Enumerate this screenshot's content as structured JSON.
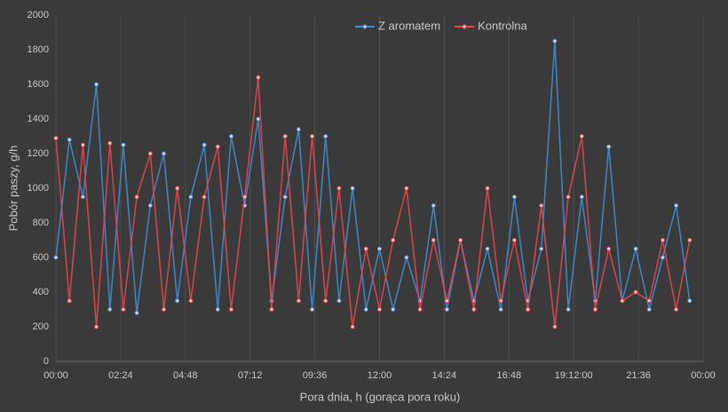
{
  "chart_data": {
    "type": "line",
    "xlabel": "Pora dnia, h (gorąca pora roku)",
    "ylabel": "Pobór paszy, g/h",
    "x": [
      0,
      0.5,
      1,
      1.5,
      2,
      2.5,
      3,
      3.5,
      4,
      4.5,
      5,
      5.5,
      6,
      6.5,
      7,
      7.5,
      8,
      8.5,
      9,
      9.5,
      10,
      10.5,
      11,
      11.5,
      12,
      12.5,
      13,
      13.5,
      14,
      14.5,
      15,
      15.5,
      16,
      16.5,
      17,
      17.5,
      18,
      18.5,
      19,
      19.5,
      20,
      20.5,
      21,
      21.5,
      22,
      22.5,
      23,
      23.5
    ],
    "series": [
      {
        "name": "Z aromatem",
        "color": "#3f8fd6",
        "values": [
          600,
          1280,
          950,
          1600,
          300,
          1250,
          280,
          900,
          1200,
          350,
          950,
          1250,
          300,
          1300,
          900,
          1400,
          350,
          950,
          1340,
          300,
          1300,
          350,
          1000,
          300,
          650,
          300,
          600,
          350,
          900,
          300,
          700,
          350,
          650,
          300,
          950,
          350,
          650,
          1850,
          300,
          950,
          350,
          1240,
          350,
          650,
          300,
          600,
          900,
          350
        ]
      },
      {
        "name": "Kontrolna",
        "color": "#e8474f",
        "values": [
          1290,
          350,
          1250,
          200,
          1260,
          300,
          950,
          1200,
          300,
          1000,
          350,
          950,
          1240,
          300,
          950,
          1640,
          300,
          1300,
          350,
          1300,
          350,
          1000,
          200,
          650,
          300,
          700,
          1000,
          300,
          700,
          350,
          700,
          300,
          1000,
          350,
          700,
          300,
          900,
          200,
          950,
          1300,
          300,
          650,
          350,
          400,
          350,
          700,
          300,
          700
        ]
      }
    ],
    "xlim": [
      0,
      24
    ],
    "xticks": [
      {
        "value": 0,
        "label": "00:00"
      },
      {
        "value": 2.4,
        "label": "02:24"
      },
      {
        "value": 4.8,
        "label": "04:48"
      },
      {
        "value": 7.2,
        "label": "07:12"
      },
      {
        "value": 9.6,
        "label": "09:36"
      },
      {
        "value": 12,
        "label": "12:00"
      },
      {
        "value": 14.4,
        "label": "14:24"
      },
      {
        "value": 16.8,
        "label": "16:48"
      },
      {
        "value": 19.2,
        "label": "19:12:00"
      },
      {
        "value": 21.6,
        "label": "21:36"
      },
      {
        "value": 24,
        "label": "00:00"
      }
    ],
    "ylim": [
      0,
      2000
    ],
    "yticks": [
      0,
      200,
      400,
      600,
      800,
      1000,
      1200,
      1400,
      1600,
      1800,
      2000
    ],
    "grid": "x",
    "legend": "top"
  }
}
